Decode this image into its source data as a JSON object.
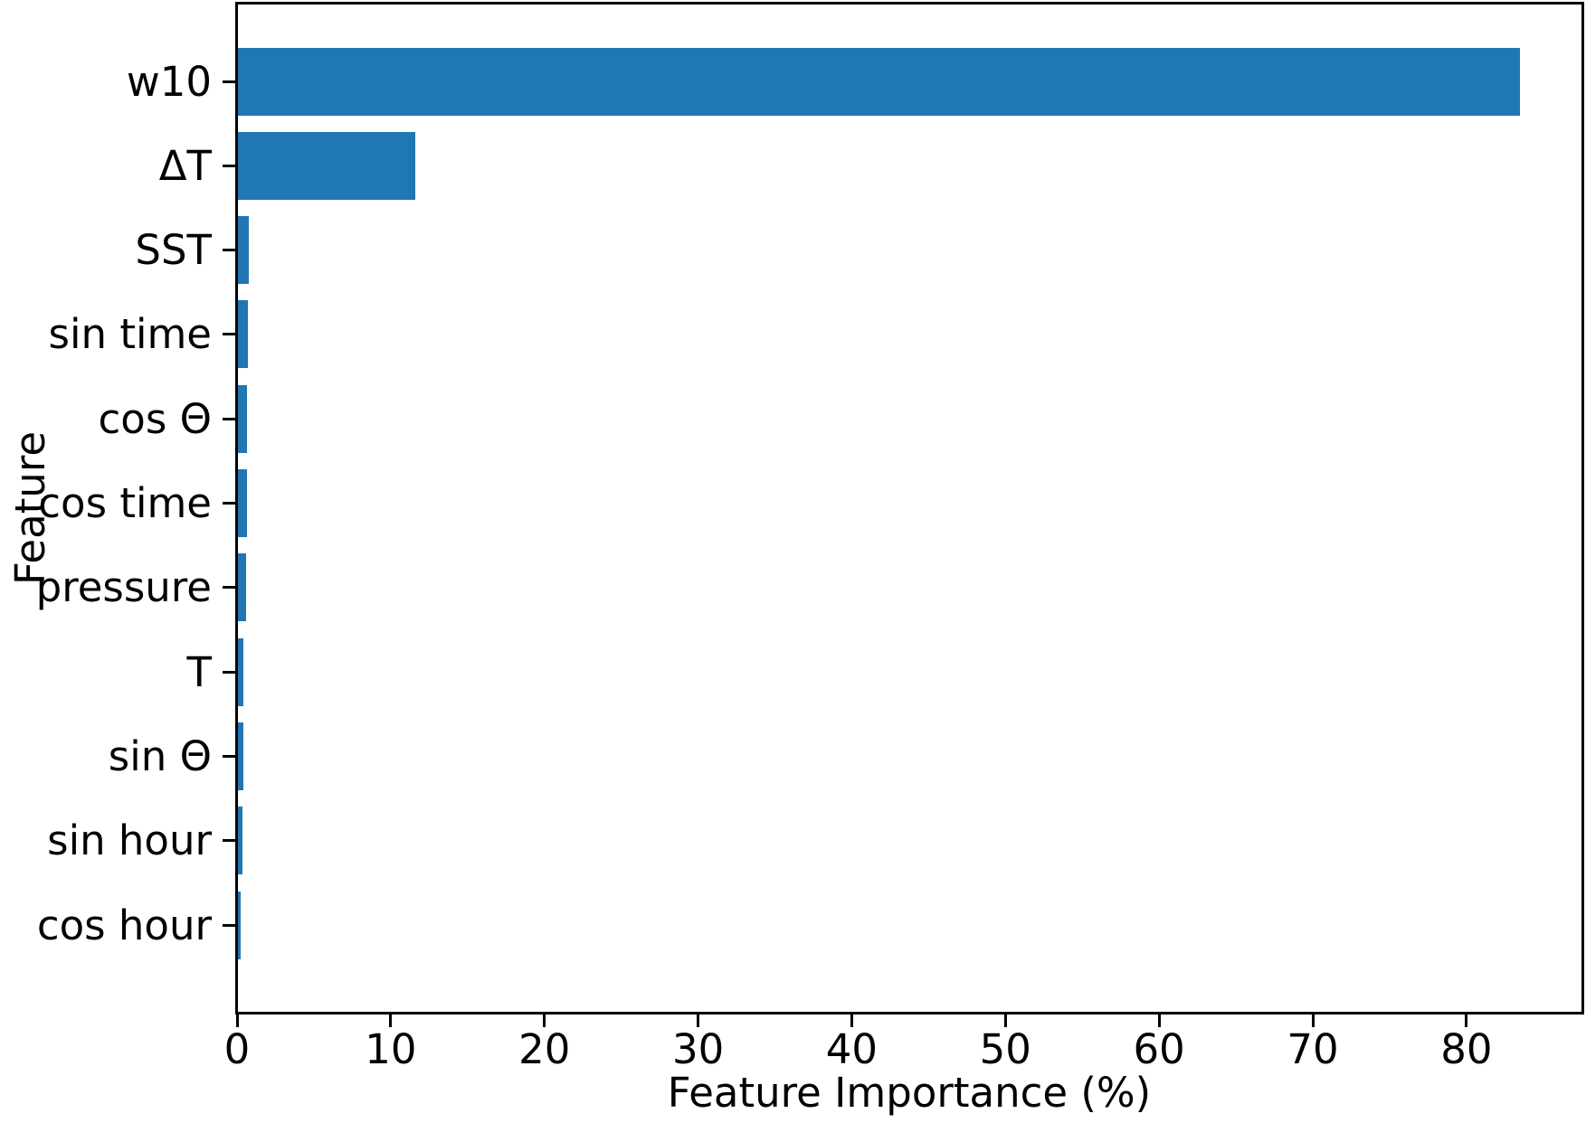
{
  "chart_data": {
    "type": "bar",
    "orientation": "horizontal",
    "title": "",
    "xlabel": "Feature Importance (%)",
    "ylabel": "Feature",
    "categories": [
      "w10",
      "ΔT",
      "SST",
      "sin time",
      "cos Θ",
      "cos time",
      "pressure",
      "T",
      "sin Θ",
      "sin hour",
      "cos hour"
    ],
    "values": [
      83.5,
      11.6,
      0.77,
      0.68,
      0.65,
      0.63,
      0.6,
      0.42,
      0.4,
      0.38,
      0.26
    ],
    "xlim": [
      0,
      87.6
    ],
    "xticks": [
      0,
      10,
      20,
      30,
      40,
      50,
      60,
      70,
      80
    ],
    "grid": false,
    "legend": null,
    "colors": {
      "bar": "#1f77b4",
      "axis": "#000000",
      "text": "#000000",
      "background": "#ffffff"
    }
  }
}
